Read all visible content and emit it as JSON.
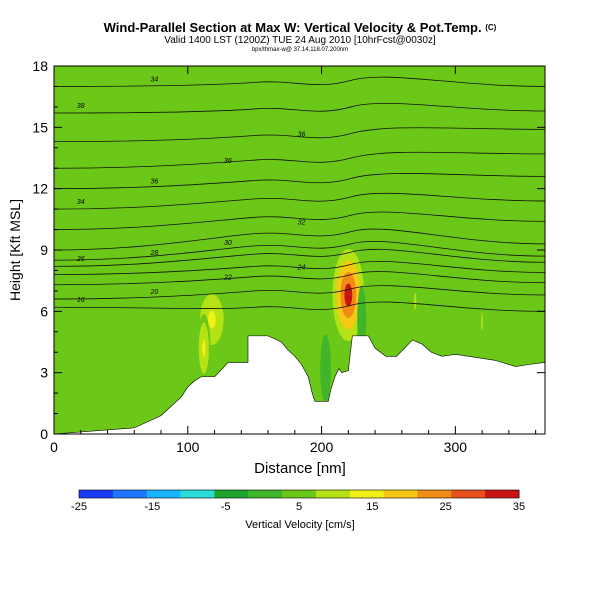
{
  "header": {
    "title": "Wind-Parallel Section at Max W: Vertical Velocity & Pot.Temp.",
    "title_mark": "(C)",
    "subtitle": "Valid 1400 LST (1200Z) TUE 24 Aug 2010 [10hrFcst@0030z]",
    "subsubtitle": "bpx/thmax-w@ 37.14,118.07,200nm"
  },
  "chart_data": {
    "type": "heatmap",
    "xlabel": "Distance [nm]",
    "ylabel": "Height [Kft MSL]",
    "xlim": [
      0,
      367
    ],
    "ylim": [
      0,
      18
    ],
    "x_ticks": [
      "0",
      "100",
      "200",
      "300"
    ],
    "y_ticks": [
      "0",
      "3",
      "6",
      "9",
      "12",
      "15",
      "18"
    ],
    "colorbar": {
      "label": "Vertical Velocity [cm/s]",
      "tick_labels": [
        "-25",
        "-15",
        "-5",
        "5",
        "15",
        "25",
        "35"
      ],
      "levels": [
        -25,
        -20,
        -15,
        -10,
        -5,
        0,
        5,
        10,
        15,
        20,
        25,
        30,
        35
      ],
      "colors": [
        "#1a3cff",
        "#1e78ff",
        "#19b4ff",
        "#2cdcd6",
        "#1fa52e",
        "#41b52a",
        "#6cc818",
        "#b4e214",
        "#f0f014",
        "#f8c814",
        "#f08c14",
        "#e8501c",
        "#c81414"
      ]
    },
    "terrain": [
      [
        0,
        0
      ],
      [
        60,
        0.3
      ],
      [
        80,
        0.9
      ],
      [
        95,
        1.8
      ],
      [
        100,
        2.3
      ],
      [
        105,
        2.6
      ],
      [
        110,
        2.8
      ],
      [
        120,
        2.8
      ],
      [
        126,
        3.2
      ],
      [
        130,
        3.5
      ],
      [
        145,
        3.5
      ],
      [
        145,
        4.8
      ],
      [
        160,
        4.8
      ],
      [
        170,
        4.5
      ],
      [
        175,
        4.1
      ],
      [
        180,
        3.8
      ],
      [
        185,
        3.4
      ],
      [
        190,
        2.8
      ],
      [
        193,
        2.0
      ],
      [
        195,
        1.6
      ],
      [
        205,
        1.6
      ],
      [
        207,
        2.2
      ],
      [
        210,
        2.8
      ],
      [
        213,
        3.2
      ],
      [
        215,
        3.0
      ],
      [
        220,
        3.1
      ],
      [
        223,
        4.8
      ],
      [
        235,
        4.8
      ],
      [
        240,
        4.2
      ],
      [
        248,
        3.8
      ],
      [
        256,
        3.8
      ],
      [
        262,
        4.2
      ],
      [
        268,
        4.6
      ],
      [
        275,
        4.4
      ],
      [
        282,
        4.0
      ],
      [
        290,
        3.8
      ],
      [
        300,
        3.9
      ],
      [
        310,
        3.8
      ],
      [
        330,
        3.6
      ],
      [
        345,
        3.3
      ],
      [
        355,
        3.4
      ],
      [
        367,
        3.5
      ]
    ],
    "updrafts": [
      {
        "x": 118,
        "y": 5.6,
        "w": 35,
        "peak": 12
      },
      {
        "x": 220,
        "y": 6.8,
        "w": 35,
        "peak": 30
      },
      {
        "x": 112,
        "y": 4.2,
        "w": 15,
        "peak": 10
      },
      {
        "x": 270,
        "y": 6.5,
        "w": 10,
        "peak": 5
      },
      {
        "x": 320,
        "y": 5.5,
        "w": 8,
        "peak": 5
      }
    ],
    "downdrafts": [
      {
        "x": 203,
        "y": 3.2,
        "w": -12,
        "peak": -5
      },
      {
        "x": 230,
        "y": 5.6,
        "w": -10,
        "peak": -5
      }
    ],
    "isentropes": [
      {
        "label": "16",
        "y0": 6.2,
        "y_crest": 6.2,
        "y1": 6.0
      },
      {
        "label": "20",
        "y0": 6.6,
        "y_crest": 7.0,
        "y1": 6.8
      },
      {
        "label": "22",
        "y0": 7.3,
        "y_crest": 7.7,
        "y1": 7.4
      },
      {
        "label": "24",
        "y0": 7.8,
        "y_crest": 8.2,
        "y1": 7.9
      },
      {
        "label": "26",
        "y0": 8.2,
        "y_crest": 8.8,
        "y1": 8.4
      },
      {
        "label": "28",
        "y0": 8.5,
        "y_crest": 9.2,
        "y1": 8.7
      },
      {
        "label": "30",
        "y0": 9.0,
        "y_crest": 9.8,
        "y1": 9.3
      },
      {
        "label": "32",
        "y0": 10.0,
        "y_crest": 10.6,
        "y1": 10.4
      },
      {
        "label": "34",
        "y0": 11.0,
        "y_crest": 11.5,
        "y1": 11.4
      },
      {
        "label": "36",
        "y0": 12.0,
        "y_crest": 12.4,
        "y1": 12.6
      },
      {
        "label": "36",
        "y0": 13.0,
        "y_crest": 13.4,
        "y1": 13.7
      },
      {
        "label": "36",
        "y0": 14.3,
        "y_crest": 14.6,
        "y1": 14.9
      },
      {
        "label": "38",
        "y0": 15.7,
        "y_crest": 15.9,
        "y1": 15.8
      },
      {
        "label": "34",
        "y0": 17.0,
        "y_crest": 17.2,
        "y1": 17.0
      }
    ]
  }
}
